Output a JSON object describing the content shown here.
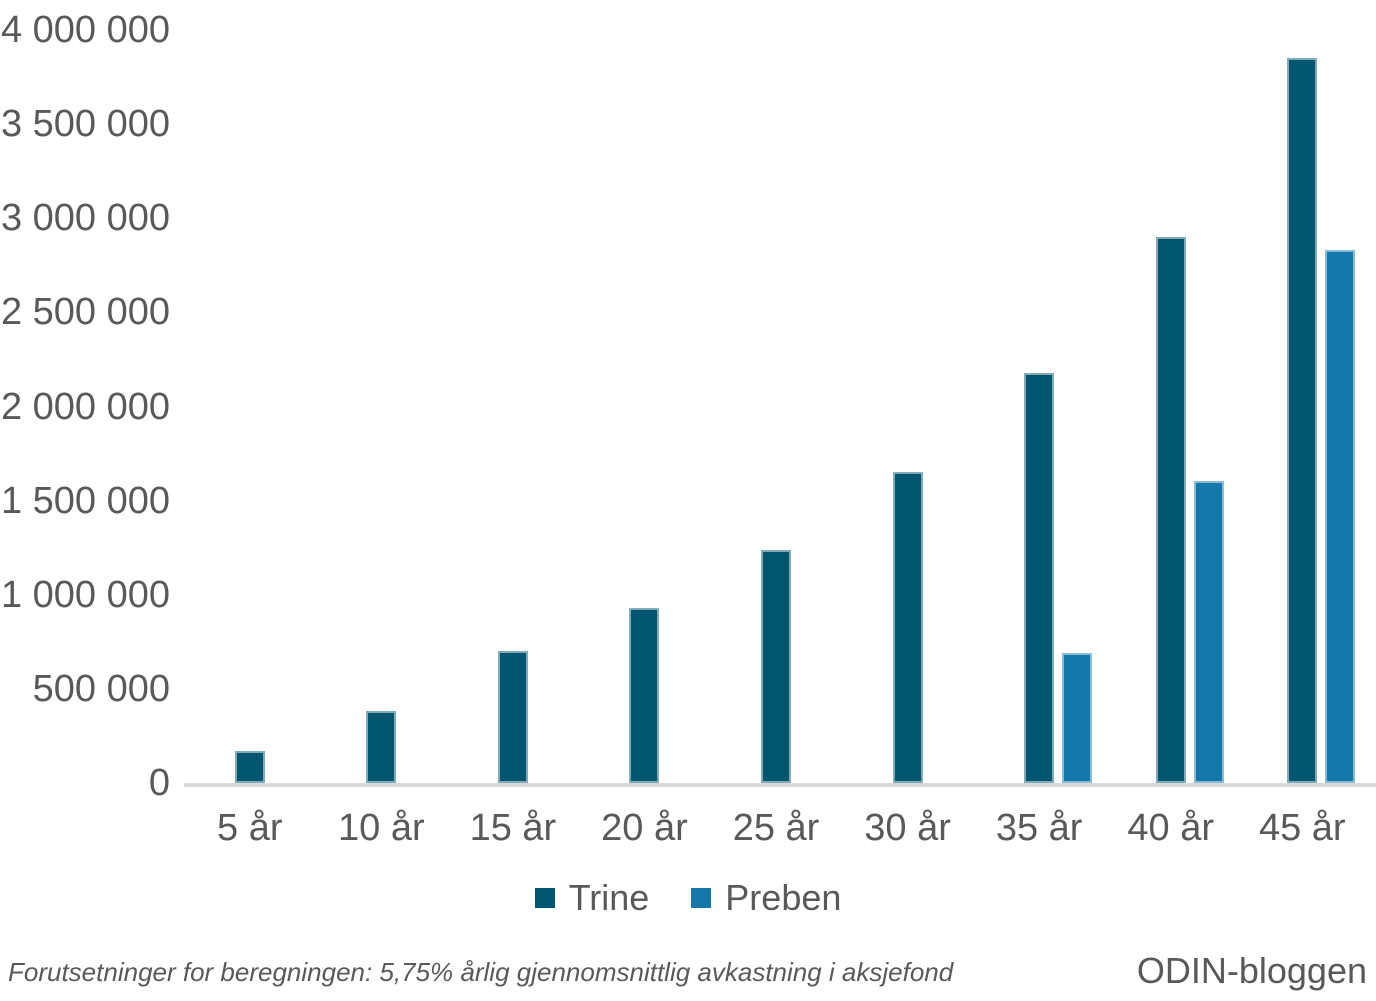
{
  "chart_data": {
    "type": "bar",
    "title": "",
    "xlabel": "",
    "ylabel": "",
    "categories": [
      "5 år",
      "10 år",
      "15 år",
      "20 år",
      "25 år",
      "30 år",
      "35 år",
      "40 år",
      "45 år"
    ],
    "series": [
      {
        "name": "Trine",
        "color": "#035670",
        "values": [
          170000,
          385000,
          700000,
          930000,
          1240000,
          1650000,
          2180000,
          2900000,
          3850000
        ]
      },
      {
        "name": "Preben",
        "color": "#1478AB",
        "values": [
          null,
          null,
          null,
          null,
          null,
          null,
          690000,
          1605000,
          2830000
        ]
      }
    ],
    "ylim": [
      0,
      4000000
    ],
    "yticks": [
      {
        "label": "4 000 000",
        "value": 4000000
      },
      {
        "label": "3 500 000",
        "value": 3500000
      },
      {
        "label": "3 000 000",
        "value": 3000000
      },
      {
        "label": "2 500 000",
        "value": 2500000
      },
      {
        "label": "2 000 000",
        "value": 2000000
      },
      {
        "label": "1 500 000",
        "value": 1500000
      },
      {
        "label": "1 000 000",
        "value": 1000000
      },
      {
        "label": "500 000",
        "value": 500000
      },
      {
        "label": "0",
        "value": 0
      }
    ],
    "grid": false,
    "legend_position": "bottom"
  },
  "footer": {
    "note": "Forutsetninger for beregningen: 5,75% årlig gjennomsnittlig avkastning i aksjefond",
    "brand": "ODIN-bloggen"
  },
  "colors": {
    "axis_line": "#D9D9D9",
    "text": "#595959"
  }
}
